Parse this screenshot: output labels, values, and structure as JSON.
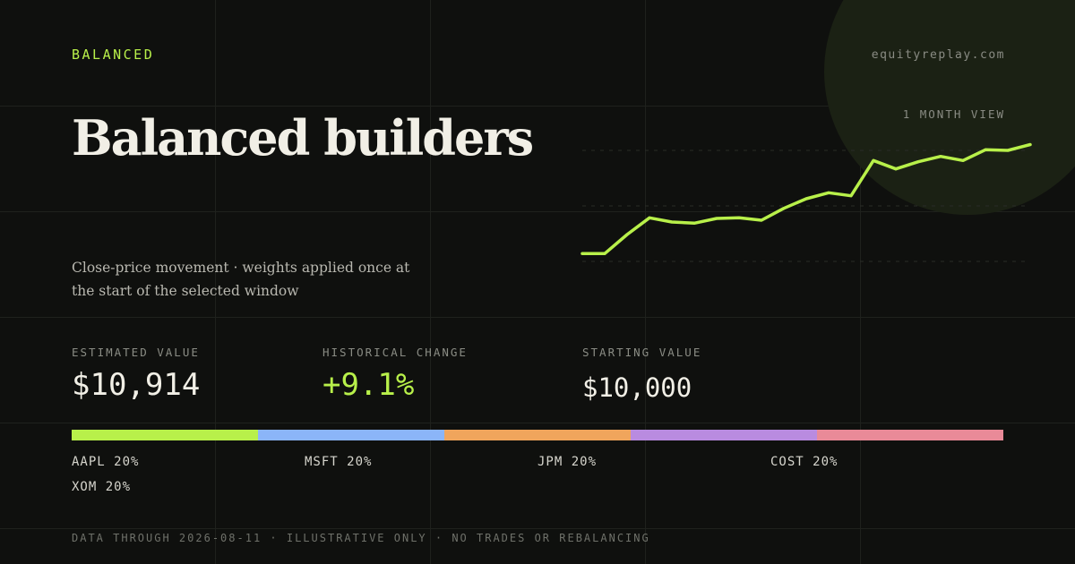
{
  "header": {
    "eyebrow": "BALANCED",
    "domain": "equityreplay.com",
    "title": "Balanced builders",
    "subtitle": "Close-price movement · weights applied once at the start of the selected window",
    "view_label": "1 MONTH VIEW"
  },
  "stats": {
    "estimated_value": {
      "label": "ESTIMATED VALUE",
      "value": "$10,914"
    },
    "historical_change": {
      "label": "HISTORICAL CHANGE",
      "value": "+9.1%"
    },
    "starting_value": {
      "label": "STARTING VALUE",
      "value": "$10,000"
    }
  },
  "allocations": [
    {
      "label": "AAPL 20%",
      "weight": 20,
      "color": "#b8f04a"
    },
    {
      "label": "MSFT 20%",
      "weight": 20,
      "color": "#8bb5f8"
    },
    {
      "label": "JPM 20%",
      "weight": 20,
      "color": "#f0a55c"
    },
    {
      "label": "COST 20%",
      "weight": 20,
      "color": "#b98be0"
    },
    {
      "label": "XOM 20%",
      "weight": 20,
      "color": "#e98a98"
    }
  ],
  "footer": "DATA THROUGH 2026-08-11 · ILLUSTRATIVE ONLY · NO TRADES OR REBALANCING",
  "colors": {
    "accent": "#b8f04a",
    "background": "#0f100e",
    "muted": "#8a8c84"
  },
  "chart_data": {
    "type": "line",
    "series": [
      {
        "values": [
          10000,
          10000,
          10160,
          10300,
          10265,
          10255,
          10295,
          10300,
          10280,
          10380,
          10460,
          10510,
          10485,
          10780,
          10710,
          10770,
          10815,
          10780,
          10870,
          10865,
          10914
        ]
      }
    ],
    "ylim": [
      9500,
      11300
    ],
    "grid": true,
    "color": "#b8f04a"
  }
}
